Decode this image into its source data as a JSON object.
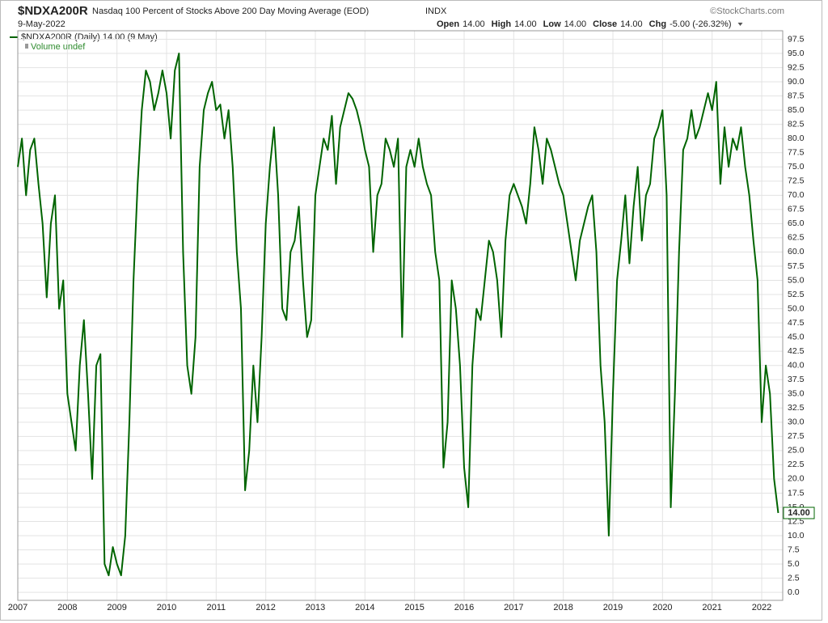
{
  "chart_data": {
    "type": "line",
    "title": "$NDXA200R",
    "subtitle": "Nasdaq 100 Percent of Stocks Above 200 Day Moving Average (EOD)",
    "exchange": "INDX",
    "date": "9-May-2022",
    "watermark": "©StockCharts.com",
    "quote": [
      {
        "label": "Open",
        "value": "14.00"
      },
      {
        "label": "High",
        "value": "14.00"
      },
      {
        "label": "Low",
        "value": "14.00"
      },
      {
        "label": "Close",
        "value": "14.00"
      },
      {
        "label": "Chg",
        "value": "-5.00 (-26.32%)"
      }
    ],
    "volume_legend": "Volume undef",
    "last_label": "14.00",
    "categories": [
      "2007",
      null,
      null,
      null,
      null,
      null,
      null,
      null,
      null,
      null,
      null,
      null,
      "2008",
      null,
      null,
      null,
      null,
      null,
      null,
      null,
      null,
      null,
      null,
      null,
      "2009",
      null,
      null,
      null,
      null,
      null,
      null,
      null,
      null,
      null,
      null,
      null,
      "2010",
      null,
      null,
      null,
      null,
      null,
      null,
      null,
      null,
      null,
      null,
      null,
      "2011",
      null,
      null,
      null,
      null,
      null,
      null,
      null,
      null,
      null,
      null,
      null,
      "2012",
      null,
      null,
      null,
      null,
      null,
      null,
      null,
      null,
      null,
      null,
      null,
      "2013",
      null,
      null,
      null,
      null,
      null,
      null,
      null,
      null,
      null,
      null,
      null,
      "2014",
      null,
      null,
      null,
      null,
      null,
      null,
      null,
      null,
      null,
      null,
      null,
      "2015",
      null,
      null,
      null,
      null,
      null,
      null,
      null,
      null,
      null,
      null,
      null,
      "2016",
      null,
      null,
      null,
      null,
      null,
      null,
      null,
      null,
      null,
      null,
      null,
      "2017",
      null,
      null,
      null,
      null,
      null,
      null,
      null,
      null,
      null,
      null,
      null,
      "2018",
      null,
      null,
      null,
      null,
      null,
      null,
      null,
      null,
      null,
      null,
      null,
      "2019",
      null,
      null,
      null,
      null,
      null,
      null,
      null,
      null,
      null,
      null,
      null,
      "2020",
      null,
      null,
      null,
      null,
      null,
      null,
      null,
      null,
      null,
      null,
      null,
      "2021",
      null,
      null,
      null,
      null,
      null,
      null,
      null,
      null,
      null,
      null,
      null,
      "2022",
      null,
      null,
      null,
      null
    ],
    "series": [
      {
        "name": "$NDXA200R (Daily) 14.00 (9 May)",
        "color": "#006400",
        "values": [
          75,
          80,
          70,
          78,
          80,
          72,
          65,
          52,
          65,
          70,
          50,
          55,
          35,
          30,
          25,
          40,
          48,
          35,
          20,
          40,
          42,
          5,
          3,
          8,
          5,
          3,
          10,
          30,
          55,
          72,
          85,
          92,
          90,
          85,
          88,
          92,
          88,
          80,
          92,
          95,
          60,
          40,
          35,
          45,
          75,
          85,
          88,
          90,
          85,
          86,
          80,
          85,
          75,
          60,
          50,
          18,
          25,
          40,
          30,
          45,
          65,
          75,
          82,
          70,
          50,
          48,
          60,
          62,
          68,
          55,
          45,
          48,
          70,
          75,
          80,
          78,
          84,
          72,
          82,
          85,
          88,
          87,
          85,
          82,
          78,
          75,
          60,
          70,
          72,
          80,
          78,
          75,
          80,
          45,
          75,
          78,
          75,
          80,
          75,
          72,
          70,
          60,
          55,
          22,
          30,
          55,
          50,
          40,
          22,
          15,
          40,
          50,
          48,
          55,
          62,
          60,
          55,
          45,
          62,
          70,
          72,
          70,
          68,
          65,
          72,
          82,
          78,
          72,
          80,
          78,
          75,
          72,
          70,
          65,
          60,
          55,
          62,
          65,
          68,
          70,
          60,
          40,
          30,
          10,
          35,
          55,
          62,
          70,
          58,
          68,
          75,
          62,
          70,
          72,
          80,
          82,
          85,
          70,
          15,
          35,
          60,
          78,
          80,
          85,
          80,
          82,
          85,
          88,
          85,
          90,
          72,
          82,
          75,
          80,
          78,
          82,
          75,
          70,
          62,
          55,
          30,
          40,
          35,
          20,
          14
        ]
      }
    ],
    "ylim": [
      -1.4,
      99
    ],
    "yticks": [
      {
        "value": 0,
        "label": "0.0"
      },
      2.5,
      {
        "value": 5,
        "label": "5.0"
      },
      7.5,
      {
        "value": 10,
        "label": "10.0"
      },
      12.5,
      {
        "value": 15,
        "label": "15.0"
      },
      17.5,
      {
        "value": 20,
        "label": "20.0"
      },
      22.5,
      {
        "value": 25,
        "label": "25.0"
      },
      27.5,
      {
        "value": 30,
        "label": "30.0"
      },
      32.5,
      {
        "value": 35,
        "label": "35.0"
      },
      37.5,
      {
        "value": 40,
        "label": "40.0"
      },
      42.5,
      {
        "value": 45,
        "label": "45.0"
      },
      47.5,
      {
        "value": 50,
        "label": "50.0"
      },
      52.5,
      {
        "value": 55,
        "label": "55.0"
      },
      57.5,
      {
        "value": 60,
        "label": "60.0"
      },
      62.5,
      {
        "value": 65,
        "label": "65.0"
      },
      67.5,
      {
        "value": 70,
        "label": "70.0"
      },
      72.5,
      {
        "value": 75,
        "label": "75.0"
      },
      77.5,
      {
        "value": 80,
        "label": "80.0"
      },
      82.5,
      {
        "value": 85,
        "label": "85.0"
      },
      87.5,
      {
        "value": 90,
        "label": "90.0"
      },
      92.5,
      {
        "value": 95,
        "label": "95.0"
      },
      97.5
    ],
    "grid": true
  }
}
